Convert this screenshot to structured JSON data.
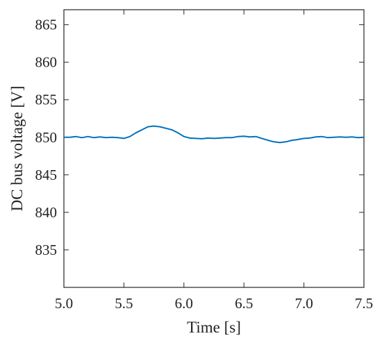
{
  "chart_data": {
    "type": "line",
    "title": "",
    "xlabel": "Time [s]",
    "ylabel": "DC bus voltage [V]",
    "xlim": [
      5.0,
      7.5
    ],
    "ylim": [
      830,
      867
    ],
    "xticks": [
      5.0,
      5.5,
      6.0,
      6.5,
      7.0,
      7.5
    ],
    "xtick_labels": [
      "5.0",
      "5.5",
      "6.0",
      "6.5",
      "7.0",
      "7.5"
    ],
    "yticks": [
      835,
      840,
      845,
      850,
      855,
      860,
      865
    ],
    "ytick_labels": [
      "835",
      "840",
      "845",
      "850",
      "855",
      "860",
      "865"
    ],
    "grid": false,
    "series": [
      {
        "color": "#0072bd",
        "x": [
          5.0,
          5.05,
          5.1,
          5.15,
          5.2,
          5.25,
          5.3,
          5.35,
          5.4,
          5.45,
          5.5,
          5.55,
          5.6,
          5.65,
          5.7,
          5.75,
          5.8,
          5.85,
          5.9,
          5.95,
          6.0,
          6.05,
          6.1,
          6.15,
          6.2,
          6.25,
          6.3,
          6.35,
          6.4,
          6.45,
          6.5,
          6.55,
          6.6,
          6.65,
          6.7,
          6.75,
          6.8,
          6.85,
          6.9,
          6.95,
          7.0,
          7.05,
          7.1,
          7.15,
          7.2,
          7.25,
          7.3,
          7.35,
          7.4,
          7.45,
          7.5
        ],
        "y": [
          850.0,
          850.0,
          850.1,
          849.95,
          850.1,
          849.95,
          850.05,
          849.95,
          850.0,
          849.95,
          849.85,
          850.1,
          850.6,
          851.0,
          851.4,
          851.5,
          851.4,
          851.2,
          851.0,
          850.6,
          850.1,
          849.9,
          849.85,
          849.8,
          849.9,
          849.85,
          849.9,
          849.95,
          849.95,
          850.1,
          850.15,
          850.05,
          850.1,
          849.85,
          849.6,
          849.4,
          849.3,
          849.4,
          849.6,
          849.7,
          849.85,
          849.9,
          850.05,
          850.1,
          849.95,
          850.0,
          850.05,
          850.0,
          850.05,
          849.95,
          850.0
        ]
      }
    ]
  }
}
